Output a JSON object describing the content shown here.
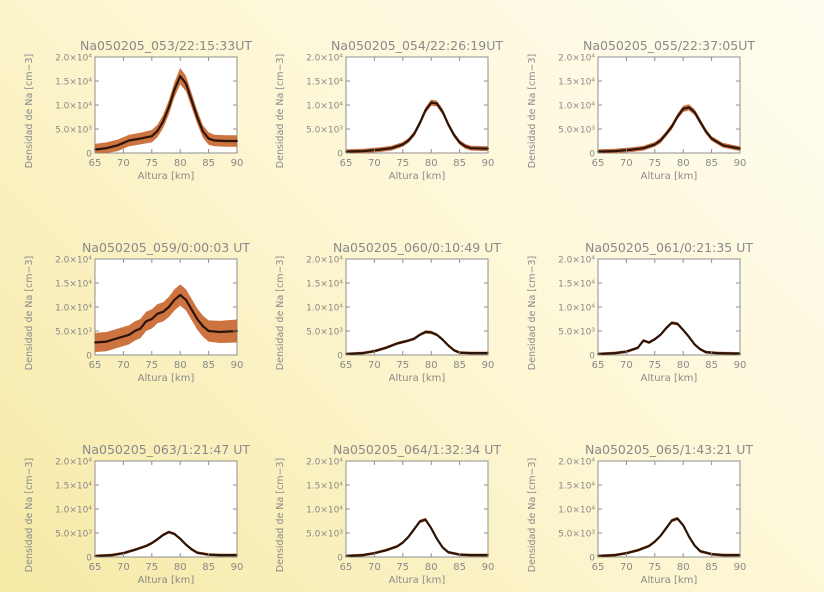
{
  "chart_data": [
    {
      "type": "line",
      "title": "Na050205_053/22:15:33UT",
      "xlabel": "Altura [km]",
      "ylabel": "Densidad de Na [cm−3]",
      "xlim": [
        65,
        90
      ],
      "ylim": [
        0,
        20000
      ],
      "xticks": [
        "65",
        "70",
        "75",
        "80",
        "85",
        "90"
      ],
      "yticks": [
        "0",
        "5.0×10³",
        "1.0×10⁴",
        "1.5×10⁴",
        "2.0×10⁴"
      ],
      "x": [
        65,
        67,
        69,
        71,
        73,
        75,
        76,
        77,
        78,
        79,
        80,
        81,
        82,
        83,
        84,
        85,
        86,
        88,
        90
      ],
      "values": [
        700,
        1000,
        1600,
        2600,
        3000,
        3500,
        4600,
        6600,
        9500,
        13200,
        16000,
        14500,
        11000,
        7500,
        4500,
        3000,
        2600,
        2500,
        2500
      ],
      "band": [
        1200,
        1200,
        1200,
        1200,
        1200,
        1300,
        1300,
        1400,
        1500,
        1600,
        1700,
        1600,
        1500,
        1400,
        1300,
        1300,
        1200,
        1200,
        1200
      ]
    },
    {
      "type": "line",
      "title": "Na050205_054/22:26:19UT",
      "xlabel": "Altura [km]",
      "ylabel": "Densidad de Na [cm−3]",
      "xlim": [
        65,
        90
      ],
      "ylim": [
        0,
        20000
      ],
      "xticks": [
        "65",
        "70",
        "75",
        "80",
        "85",
        "90"
      ],
      "yticks": [
        "0",
        "5.0×10³",
        "1.0×10⁴",
        "1.5×10⁴",
        "2.0×10⁴"
      ],
      "x": [
        65,
        68,
        71,
        73,
        75,
        76,
        77,
        78,
        79,
        80,
        81,
        82,
        83,
        84,
        85,
        86,
        87,
        90
      ],
      "values": [
        300,
        400,
        700,
        1000,
        1800,
        2600,
        4000,
        6200,
        8900,
        10500,
        10300,
        8600,
        6000,
        3800,
        2200,
        1400,
        1000,
        900
      ],
      "band": [
        500,
        500,
        500,
        500,
        500,
        500,
        550,
        600,
        600,
        650,
        600,
        600,
        550,
        500,
        500,
        500,
        500,
        500
      ]
    },
    {
      "type": "line",
      "title": "Na050205_055/22:37:05UT",
      "xlabel": "Altura [km]",
      "ylabel": "Densidad de Na [cm−3]",
      "xlim": [
        65,
        90
      ],
      "ylim": [
        0,
        20000
      ],
      "xticks": [
        "65",
        "70",
        "75",
        "80",
        "85",
        "90"
      ],
      "yticks": [
        "0",
        "5.0×10³",
        "1.0×10⁴",
        "1.5×10⁴",
        "2.0×10⁴"
      ],
      "x": [
        65,
        68,
        71,
        73,
        75,
        76,
        77,
        78,
        79,
        80,
        81,
        82,
        83,
        84,
        85,
        87,
        90
      ],
      "values": [
        300,
        400,
        700,
        1000,
        1800,
        2600,
        4000,
        5500,
        7600,
        9200,
        9500,
        8500,
        6500,
        4500,
        3000,
        1600,
        900
      ],
      "band": [
        500,
        500,
        500,
        500,
        500,
        550,
        550,
        600,
        600,
        650,
        650,
        600,
        600,
        550,
        500,
        500,
        500
      ]
    },
    {
      "type": "line",
      "title": "Na050205_059/0:00:03 UT",
      "xlabel": "Altura [km]",
      "ylabel": "Densidad de Na [cm−3]",
      "xlim": [
        65,
        90
      ],
      "ylim": [
        0,
        20000
      ],
      "xticks": [
        "65",
        "70",
        "75",
        "80",
        "85",
        "90"
      ],
      "yticks": [
        "0",
        "5.0×10³",
        "1.0×10⁴",
        "1.5×10⁴",
        "2.0×10⁴"
      ],
      "x": [
        65,
        67,
        69,
        71,
        72,
        73,
        74,
        75,
        76,
        77,
        78,
        79,
        80,
        81,
        82,
        83,
        84,
        85,
        87,
        90
      ],
      "values": [
        2600,
        2800,
        3500,
        4200,
        5000,
        5500,
        7000,
        7500,
        8600,
        9000,
        10000,
        11500,
        12500,
        11500,
        9500,
        7500,
        6000,
        5000,
        4800,
        5000
      ],
      "band": [
        2000,
        2000,
        2000,
        2000,
        2000,
        2000,
        2000,
        2000,
        2000,
        2000,
        2100,
        2200,
        2200,
        2200,
        2200,
        2200,
        2200,
        2200,
        2300,
        2400
      ]
    },
    {
      "type": "line",
      "title": "Na050205_060/0:10:49 UT",
      "xlabel": "Altura [km]",
      "ylabel": "Densidad de Na [cm−3]",
      "xlim": [
        65,
        90
      ],
      "ylim": [
        0,
        20000
      ],
      "xticks": [
        "65",
        "70",
        "75",
        "80",
        "85",
        "90"
      ],
      "yticks": [
        "0",
        "5.0×10³",
        "1.0×10⁴",
        "1.5×10⁴",
        "2.0×10⁴"
      ],
      "x": [
        65,
        68,
        70,
        72,
        74,
        75,
        76,
        77,
        78,
        79,
        80,
        81,
        82,
        83,
        84,
        85,
        87,
        90
      ],
      "values": [
        200,
        400,
        800,
        1500,
        2400,
        2700,
        3000,
        3400,
        4200,
        4800,
        4700,
        4200,
        3200,
        2000,
        1000,
        500,
        400,
        400
      ],
      "band": [
        300,
        300,
        300,
        300,
        300,
        300,
        300,
        300,
        300,
        350,
        350,
        300,
        300,
        300,
        300,
        300,
        300,
        300
      ]
    },
    {
      "type": "line",
      "title": "Na050205_061/0:21:35 UT",
      "xlabel": "Altura [km]",
      "ylabel": "Densidad de Na [cm−3]",
      "xlim": [
        65,
        90
      ],
      "ylim": [
        0,
        20000
      ],
      "xticks": [
        "65",
        "70",
        "75",
        "80",
        "85",
        "90"
      ],
      "yticks": [
        "0",
        "5.0×10³",
        "1.0×10⁴",
        "1.5×10⁴",
        "2.0×10⁴"
      ],
      "x": [
        65,
        68,
        70,
        72,
        73,
        74,
        75,
        76,
        77,
        78,
        79,
        80,
        81,
        82,
        83,
        84,
        86,
        90
      ],
      "values": [
        200,
        400,
        700,
        1500,
        3000,
        2600,
        3300,
        4200,
        5600,
        6700,
        6500,
        5200,
        3800,
        2200,
        1200,
        600,
        400,
        300
      ],
      "band": [
        300,
        300,
        300,
        300,
        300,
        300,
        300,
        300,
        350,
        350,
        350,
        300,
        300,
        300,
        300,
        300,
        300,
        300
      ]
    },
    {
      "type": "line",
      "title": "Na050205_063/1:21:47 UT",
      "xlabel": "Altura [km]",
      "ylabel": "Densidad de Na [cm−3]",
      "xlim": [
        65,
        90
      ],
      "ylim": [
        0,
        20000
      ],
      "xticks": [
        "65",
        "70",
        "75",
        "80",
        "85",
        "90"
      ],
      "yticks": [
        "0",
        "5.0×10³",
        "1.0×10⁴",
        "1.5×10⁴",
        "2.0×10⁴"
      ],
      "x": [
        65,
        68,
        70,
        72,
        74,
        75,
        76,
        77,
        78,
        79,
        80,
        81,
        82,
        83,
        85,
        87,
        90
      ],
      "values": [
        200,
        400,
        800,
        1500,
        2300,
        2900,
        3700,
        4600,
        5200,
        4800,
        3800,
        2600,
        1600,
        900,
        500,
        400,
        400
      ],
      "band": [
        300,
        300,
        300,
        300,
        300,
        300,
        300,
        300,
        300,
        300,
        300,
        300,
        300,
        300,
        300,
        300,
        300
      ]
    },
    {
      "type": "line",
      "title": "Na050205_064/1:32:34 UT",
      "xlabel": "Altura [km]",
      "ylabel": "Densidad de Na [cm−3]",
      "xlim": [
        65,
        90
      ],
      "ylim": [
        0,
        20000
      ],
      "xticks": [
        "65",
        "70",
        "75",
        "80",
        "85",
        "90"
      ],
      "yticks": [
        "0",
        "5.0×10³",
        "1.0×10⁴",
        "1.5×10⁴",
        "2.0×10⁴"
      ],
      "x": [
        65,
        68,
        70,
        72,
        74,
        75,
        76,
        77,
        78,
        79,
        80,
        81,
        82,
        83,
        85,
        87,
        90
      ],
      "values": [
        200,
        400,
        800,
        1400,
        2200,
        3000,
        4200,
        5800,
        7400,
        7800,
        6000,
        3800,
        2000,
        1000,
        500,
        400,
        400
      ],
      "band": [
        300,
        300,
        300,
        300,
        300,
        300,
        300,
        350,
        350,
        350,
        350,
        300,
        300,
        300,
        300,
        300,
        300
      ]
    },
    {
      "type": "line",
      "title": "Na050205_065/1:43:21 UT",
      "xlabel": "Altura [km]",
      "ylabel": "Densidad de Na [cm−3]",
      "xlim": [
        65,
        90
      ],
      "ylim": [
        0,
        20000
      ],
      "xticks": [
        "65",
        "70",
        "75",
        "80",
        "85",
        "90"
      ],
      "yticks": [
        "0",
        "5.0×10³",
        "1.0×10⁴",
        "1.5×10⁴",
        "2.0×10⁴"
      ],
      "x": [
        65,
        68,
        70,
        72,
        74,
        75,
        76,
        77,
        78,
        79,
        80,
        81,
        82,
        83,
        85,
        87,
        90
      ],
      "values": [
        200,
        400,
        800,
        1400,
        2300,
        3200,
        4400,
        6000,
        7600,
        8000,
        6600,
        4300,
        2400,
        1200,
        600,
        400,
        400
      ],
      "band": [
        300,
        300,
        300,
        300,
        300,
        300,
        300,
        350,
        350,
        350,
        350,
        300,
        300,
        300,
        300,
        300,
        300
      ]
    }
  ],
  "colors": {
    "line": "#2b1408",
    "band": "#c8642a",
    "axis": "#8f8f8f",
    "panel": "#ffffff",
    "text": "#8a8a8a"
  }
}
